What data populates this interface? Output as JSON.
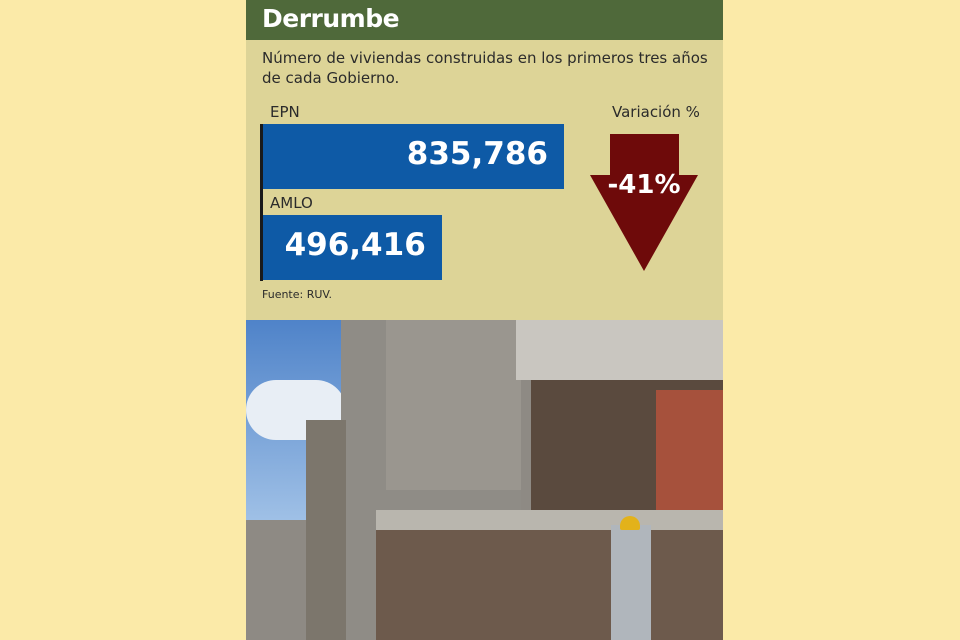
{
  "title": "Derrumbe",
  "subtitle": "Número de viviendas construidas en los primeros tres años de cada Gobierno.",
  "chart_data": {
    "type": "bar",
    "orientation": "horizontal",
    "categories": [
      "EPN",
      "AMLO"
    ],
    "values": [
      835786,
      496416
    ],
    "value_labels": [
      "835,786",
      "496,416"
    ],
    "bar_color": "#0e5aa6",
    "title": "Derrumbe",
    "subtitle": "Número de viviendas construidas en los primeros tres años de cada Gobierno.",
    "variation": {
      "label": "Variación %",
      "value": "-41%",
      "icon": "down-arrow-icon",
      "color": "#6e0a0a"
    },
    "source": "Fuente: RUV."
  },
  "colors": {
    "header": "#4f693a",
    "panel": "#ddd497",
    "page": "#fbeaa8"
  },
  "photo": {
    "description_icon": "construction-photo"
  }
}
